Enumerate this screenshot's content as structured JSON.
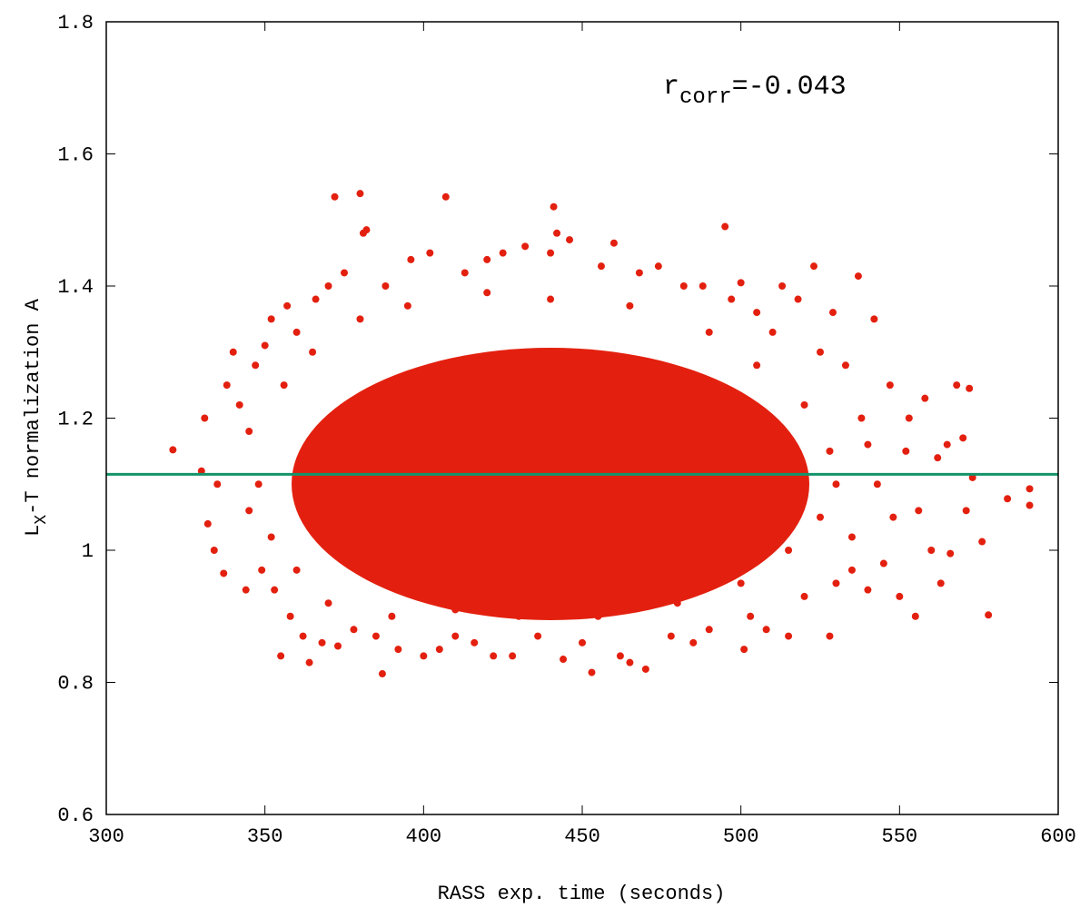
{
  "chart_data": {
    "type": "scatter",
    "xlabel": "RASS exp. time (seconds)",
    "ylabel": {
      "main": "L",
      "subscript": "X",
      "rest": "-T normalization A"
    },
    "annotation": {
      "main": "r",
      "subscript": "corr",
      "rest": "=-0.043"
    },
    "xlim": [
      300,
      600
    ],
    "ylim": [
      0.6,
      1.8
    ],
    "xticks": [
      300,
      350,
      400,
      450,
      500,
      550,
      600
    ],
    "yticks": [
      0.6,
      0.8,
      1,
      1.2,
      1.4,
      1.6,
      1.8
    ],
    "grid": false,
    "color": "#e3200f",
    "reference_line": {
      "value": 1.115,
      "color": "#13946a"
    },
    "x": [
      321,
      330,
      331,
      332,
      334,
      335,
      337,
      338,
      340,
      342,
      344,
      345,
      347,
      349,
      350,
      352,
      353,
      355,
      357,
      358,
      360,
      362,
      364,
      366,
      368,
      370,
      372,
      373,
      375,
      378,
      380,
      381,
      382,
      385,
      387,
      388,
      392,
      396,
      400,
      402,
      405,
      407,
      410,
      413,
      416,
      420,
      422,
      425,
      428,
      432,
      436,
      440,
      441,
      442,
      444,
      446,
      450,
      453,
      456,
      460,
      462,
      465,
      468,
      470,
      474,
      478,
      482,
      485,
      488,
      490,
      495,
      497,
      500,
      501,
      503,
      505,
      508,
      510,
      513,
      515,
      518,
      520,
      523,
      525,
      528,
      529,
      530,
      533,
      535,
      537,
      538,
      540,
      542,
      543,
      545,
      547,
      548,
      550,
      552,
      553,
      555,
      556,
      558,
      560,
      562,
      563,
      565,
      566,
      568,
      570,
      571,
      572,
      573,
      576,
      578,
      584,
      591,
      591,
      345,
      348,
      352,
      356,
      360,
      365,
      370,
      380,
      390,
      395,
      410,
      420,
      430,
      440,
      455,
      465,
      480,
      490,
      500,
      505,
      515,
      520,
      525,
      528,
      530,
      535,
      540
    ],
    "values": [
      1.152,
      1.12,
      1.2,
      1.04,
      1.0,
      1.1,
      0.965,
      1.25,
      1.3,
      1.22,
      0.94,
      1.06,
      1.28,
      0.97,
      1.31,
      1.35,
      0.94,
      0.84,
      1.37,
      0.9,
      1.33,
      0.87,
      0.83,
      1.38,
      0.86,
      1.4,
      1.535,
      0.855,
      1.42,
      0.88,
      1.54,
      1.48,
      1.485,
      0.87,
      0.813,
      1.4,
      0.85,
      1.44,
      0.84,
      1.45,
      0.85,
      1.535,
      0.87,
      1.42,
      0.86,
      1.44,
      0.84,
      1.45,
      0.84,
      1.46,
      0.87,
      1.45,
      1.52,
      1.48,
      0.835,
      1.47,
      0.86,
      0.815,
      1.43,
      1.465,
      0.84,
      0.83,
      1.42,
      0.82,
      1.43,
      0.87,
      1.4,
      0.86,
      1.4,
      0.88,
      1.49,
      1.38,
      1.405,
      0.85,
      0.9,
      1.36,
      0.88,
      1.33,
      1.4,
      0.87,
      1.38,
      0.93,
      1.43,
      1.3,
      0.87,
      1.36,
      0.95,
      1.28,
      0.97,
      1.415,
      1.2,
      0.94,
      1.35,
      1.1,
      0.98,
      1.25,
      1.05,
      0.93,
      1.15,
      1.2,
      0.9,
      1.06,
      1.23,
      1.0,
      1.14,
      0.95,
      1.16,
      0.995,
      1.25,
      1.17,
      1.06,
      1.245,
      1.11,
      1.013,
      0.902,
      1.078,
      1.093,
      1.068,
      1.18,
      1.1,
      1.02,
      1.25,
      0.97,
      1.3,
      0.92,
      1.35,
      0.9,
      1.37,
      0.91,
      1.39,
      0.9,
      1.38,
      0.9,
      1.37,
      0.92,
      1.33,
      0.95,
      1.28,
      1.0,
      1.22,
      1.05,
      1.15,
      1.1,
      1.02,
      1.16
    ]
  }
}
